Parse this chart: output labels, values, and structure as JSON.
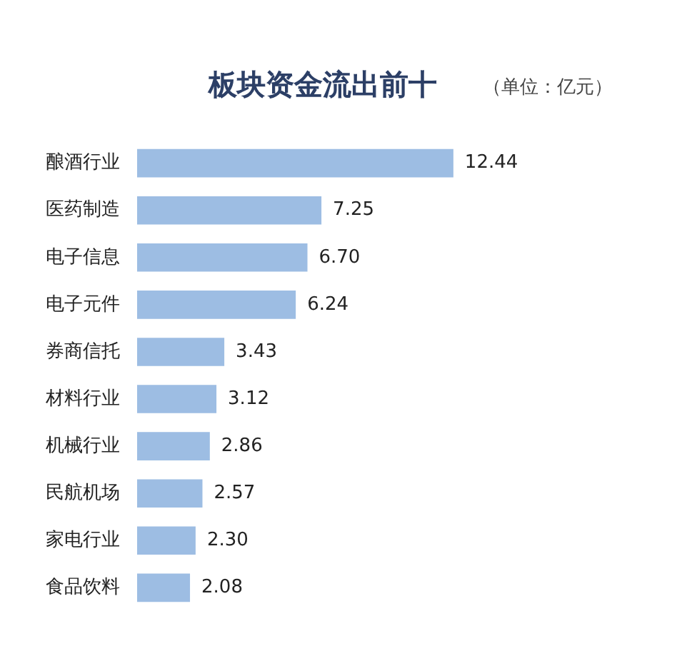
{
  "chart_data": {
    "type": "bar",
    "orientation": "horizontal",
    "title": "板块资金流出前十",
    "subtitle": "（单位：亿元）",
    "categories": [
      "酿酒行业",
      "医药制造",
      "电子信息",
      "电子元件",
      "券商信托",
      "材料行业",
      "机械行业",
      "民航机场",
      "家电行业",
      "食品饮料"
    ],
    "values": [
      12.44,
      7.25,
      6.7,
      6.24,
      3.43,
      3.12,
      2.86,
      2.57,
      2.3,
      2.08
    ],
    "value_labels": [
      "12.44",
      "7.25",
      "6.70",
      "6.24",
      "3.43",
      "3.12",
      "2.86",
      "2.57",
      "2.30",
      "2.08"
    ],
    "color": "#9dbde3",
    "grid": false,
    "legend": false,
    "tick_labels": "y"
  }
}
